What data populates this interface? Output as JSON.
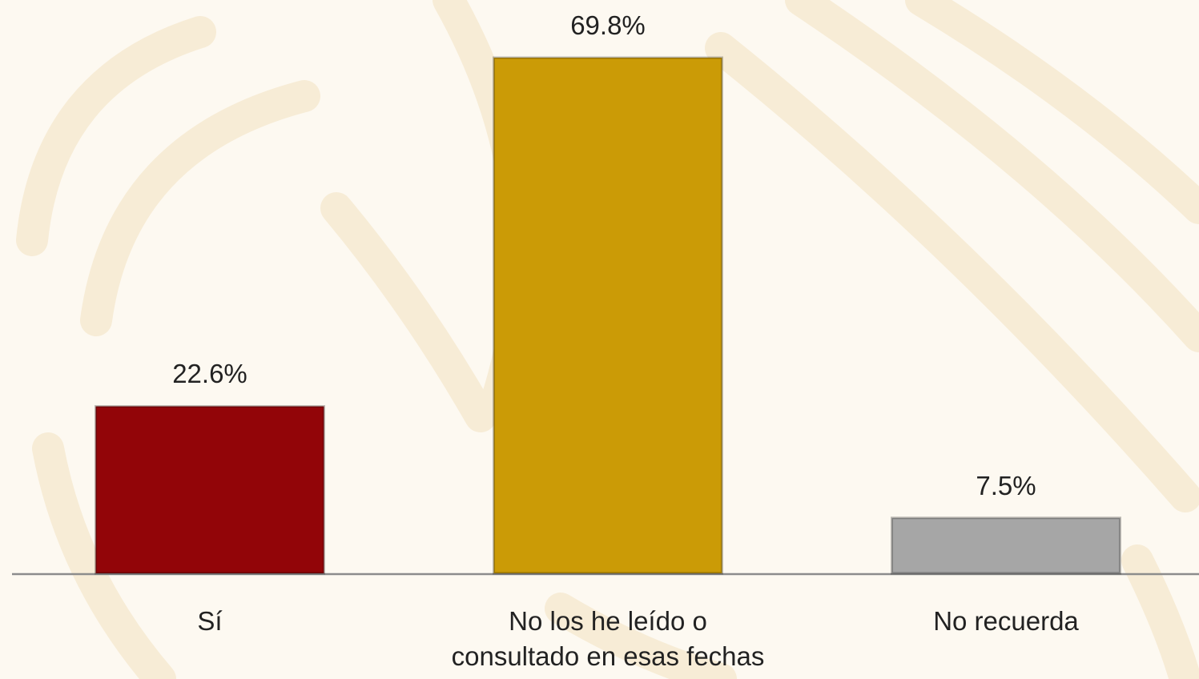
{
  "chart_data": {
    "type": "bar",
    "categories": [
      "Sí",
      "No los he leído o consultado en esas fechas",
      "No recuerda"
    ],
    "values": [
      22.6,
      69.8,
      7.5
    ],
    "value_labels": [
      "22.6%",
      "69.8%",
      "7.5%"
    ],
    "colors": [
      "#920508",
      "#cb9b06",
      "#a6a6a6"
    ]
  }
}
